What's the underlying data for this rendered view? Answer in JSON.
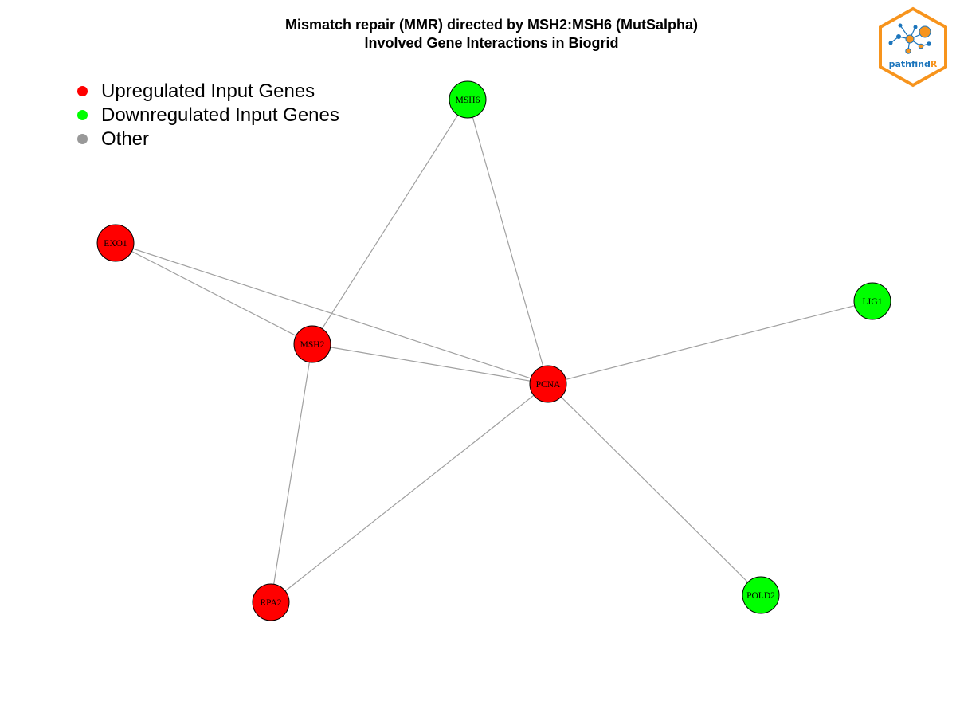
{
  "title": {
    "line1": "Mismatch repair (MMR) directed by MSH2:MSH6 (MutSalpha)",
    "line2": "Involved Gene Interactions in Biogrid"
  },
  "legend": [
    {
      "label": "Upregulated Input Genes",
      "color": "#ff0000"
    },
    {
      "label": "Downregulated Input Genes",
      "color": "#00ff00"
    },
    {
      "label": "Other",
      "color": "#999999"
    }
  ],
  "logo": {
    "text_main": "pathfind",
    "text_accent": "R",
    "border_color": "#f7941d",
    "text_color": "#1c75bc"
  },
  "nodes": [
    {
      "id": "MSH6",
      "status": "down"
    },
    {
      "id": "EXO1",
      "status": "up"
    },
    {
      "id": "MSH2",
      "status": "up"
    },
    {
      "id": "PCNA",
      "status": "up"
    },
    {
      "id": "LIG1",
      "status": "down"
    },
    {
      "id": "RPA2",
      "status": "up"
    },
    {
      "id": "POLD2",
      "status": "down"
    }
  ],
  "edges": [
    [
      "MSH6",
      "MSH2"
    ],
    [
      "MSH6",
      "PCNA"
    ],
    [
      "EXO1",
      "MSH2"
    ],
    [
      "EXO1",
      "PCNA"
    ],
    [
      "MSH2",
      "PCNA"
    ],
    [
      "MSH2",
      "RPA2"
    ],
    [
      "PCNA",
      "LIG1"
    ],
    [
      "PCNA",
      "RPA2"
    ],
    [
      "PCNA",
      "POLD2"
    ]
  ],
  "colors": {
    "up": "#ff0000",
    "down": "#00ff00",
    "other": "#999999",
    "edge": "#a0a0a0"
  }
}
